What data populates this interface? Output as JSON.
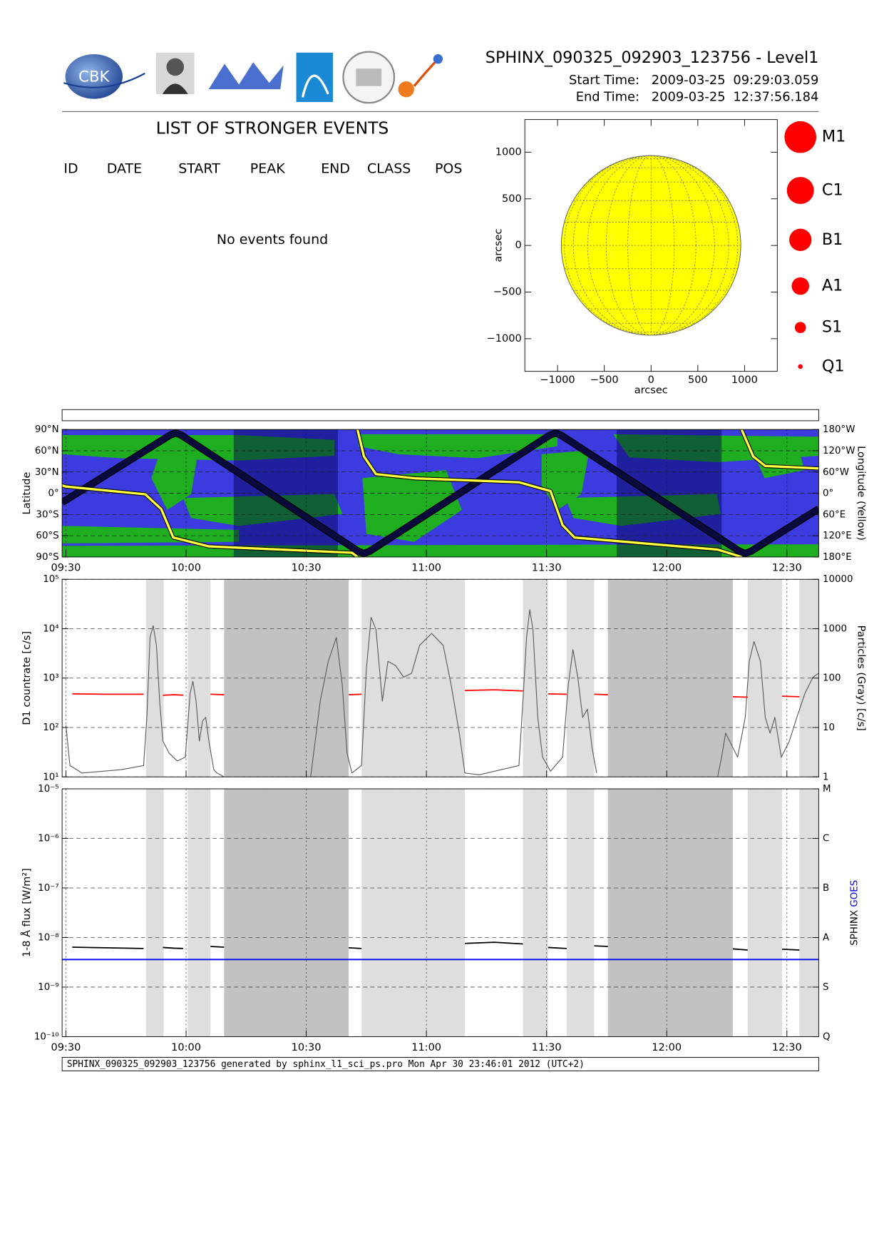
{
  "header": {
    "title": "SPHINX_090325_092903_123756 - Level1",
    "start_label": "Start Time:",
    "start_date": "2009-03-25",
    "start_time": "09:29:03.059",
    "end_label": "End Time:",
    "end_date": "2009-03-25",
    "end_time": "12:37:56.184",
    "logo_text": "CBK"
  },
  "events": {
    "title": "LIST OF STRONGER EVENTS",
    "columns": [
      "ID",
      "DATE",
      "START",
      "PEAK",
      "END",
      "CLASS",
      "POS"
    ],
    "message": "No events found"
  },
  "chart_data": [
    {
      "type": "disk",
      "xlabel": "arcsec",
      "ylabel": "arcsec",
      "xlim": [
        -1350,
        1350
      ],
      "ylim": [
        -1350,
        1350
      ],
      "xticks": [
        {
          "value": -1000,
          "label": "−1000"
        },
        {
          "value": -500,
          "label": "−500"
        },
        0,
        500,
        1000
      ],
      "yticks": [
        {
          "value": -1000,
          "label": "−1000"
        },
        {
          "value": -500,
          "label": "−500"
        },
        0,
        500,
        1000
      ],
      "disk_radius": 960,
      "disk_color": "#ffff00",
      "legend": {
        "labels": [
          "M1",
          "C1",
          "B1",
          "A1",
          "S1",
          "Q1"
        ],
        "color": "#ff0000"
      }
    },
    {
      "type": "map",
      "ylabel": "Latitude",
      "y2label": "Longitude (Yellow)",
      "xlim": [
        569.05,
        757.94
      ],
      "xticks": [
        {
          "value": 570,
          "label": "09:30"
        },
        {
          "value": 600,
          "label": "10:00"
        },
        {
          "value": 630,
          "label": "10:30"
        },
        {
          "value": 660,
          "label": "11:00"
        },
        {
          "value": 690,
          "label": "11:30"
        },
        {
          "value": 720,
          "label": "12:00"
        },
        {
          "value": 750,
          "label": "12:30"
        }
      ],
      "ylim": [
        -90,
        90
      ],
      "yticks": [
        {
          "value": 90,
          "label": "90°N"
        },
        {
          "value": 60,
          "label": "60°N"
        },
        {
          "value": 30,
          "label": "30°N"
        },
        {
          "value": 0,
          "label": "0°"
        },
        {
          "value": -30,
          "label": "30°S"
        },
        {
          "value": -60,
          "label": "60°S"
        },
        {
          "value": -90,
          "label": "90°S"
        }
      ],
      "y2lim": [
        180,
        -180
      ],
      "y2ticks": [
        {
          "value": -180,
          "label": "180°W"
        },
        {
          "value": -120,
          "label": "120°W"
        },
        {
          "value": -60,
          "label": "60°W"
        },
        {
          "value": 0,
          "label": "0°"
        },
        {
          "value": 60,
          "label": "60°E"
        },
        {
          "value": 120,
          "label": "120°E"
        },
        {
          "value": 180,
          "label": "180°E"
        }
      ],
      "grid": true,
      "shaded": [
        {
          "x": [
            611.9,
            637.9
          ],
          "color": "#000050"
        },
        {
          "x": [
            707.5,
            733.7
          ],
          "color": "#000050"
        }
      ],
      "series": [
        {
          "color": "#0a0a3c",
          "x": [
            569.05,
            596.0,
            597.4,
            598.8,
            643.0,
            644.4,
            645.8,
            690.8,
            692.2,
            693.6,
            738.2,
            739.6,
            741.0,
            757.94
          ],
          "values": [
            -13,
            82,
            85,
            82,
            -82,
            -85,
            -82,
            82,
            85,
            82,
            -82,
            -85,
            -82,
            -22
          ]
        },
        {
          "color": "#ffff40",
          "axis": "y2",
          "x": [
            569.05,
            570,
            589.8,
            593.8,
            596.8,
            605.7,
            641.4,
            642.8,
            null,
            642.8,
            644.4,
            647.4,
            657.3,
            683.1,
            691,
            694,
            697,
            732.7,
            738.7,
            null,
            738.7,
            741.6,
            744.6,
            757.94
          ],
          "values": [
            -22,
            -19,
            3,
            45,
            125,
            150,
            168,
            180,
            null,
            -180,
            -104,
            -54,
            -42,
            -31,
            -6,
            90,
            125,
            159,
            180,
            null,
            -180,
            -104,
            -77,
            -70
          ]
        }
      ]
    },
    {
      "type": "line",
      "ylabel": "D1 countrate [c/s]",
      "y2label": "Particles (Gray) [c/s]",
      "ylog": true,
      "xlim": [
        569.05,
        757.94
      ],
      "xticks": [
        570,
        600,
        630,
        660,
        690,
        720,
        750
      ],
      "xtick_labels": false,
      "ylim": [
        10,
        100000
      ],
      "yticks": [
        {
          "value": 10,
          "label": "10¹"
        },
        {
          "value": 100,
          "label": "10²"
        },
        {
          "value": 1000,
          "label": "10³"
        },
        {
          "value": 10000,
          "label": "10⁴"
        },
        {
          "value": 100000,
          "label": "10⁵"
        }
      ],
      "y2lim": [
        1,
        10000
      ],
      "y2ticks": [
        1,
        10,
        100,
        1000,
        10000
      ],
      "grid": true,
      "shaded": [
        {
          "x": [
            590.0,
            594.4
          ],
          "color": "#dedede"
        },
        {
          "x": [
            600.4,
            606.1
          ],
          "color": "#dedede"
        },
        {
          "x": [
            609.5,
            640.6
          ],
          "color": "#c2c2c2"
        },
        {
          "x": [
            643.8,
            669.6
          ],
          "color": "#dedede"
        },
        {
          "x": [
            684.1,
            690.4
          ],
          "color": "#dedede"
        },
        {
          "x": [
            695.0,
            701.9
          ],
          "color": "#dedede"
        },
        {
          "x": [
            705.3,
            736.5
          ],
          "color": "#c2c2c2"
        },
        {
          "x": [
            740.2,
            748.8
          ],
          "color": "#dedede"
        },
        {
          "x": [
            753.1,
            757.94
          ],
          "color": "#dedede"
        }
      ],
      "series": [
        {
          "color": "#5a5a5a",
          "axis": "y2",
          "x": [
            570.0,
            571.0,
            574.0,
            583.9,
            589.4,
            590.2,
            591.0,
            591.8,
            592.6,
            593.4,
            594.2,
            595.8,
            597.8,
            599.8,
            601.0,
            601.7,
            602.5,
            603.3,
            604.1,
            604.9,
            605.7,
            606.9,
            607.7,
            609.5,
            null,
            631.1,
            633.5,
            635.5,
            637.5,
            639.0,
            640.2,
            641.4,
            643.8,
            645.0,
            646.2,
            647.4,
            649.0,
            650.4,
            652.3,
            654.3,
            656.3,
            658.3,
            661.3,
            664.2,
            666.2,
            668.2,
            669.6,
            673.2,
            683.1,
            684.1,
            685.0,
            685.8,
            686.6,
            687.8,
            689.0,
            691.0,
            694.0,
            695.4,
            696.6,
            697.8,
            699.0,
            700.2,
            701.4,
            702.5,
            null,
            732.7,
            733.7,
            734.7,
            737.7,
            739.6,
            740.6,
            741.8,
            743.4,
            744.6,
            745.8,
            747.0,
            748.6,
            750.6,
            752.5,
            754.5,
            756.5,
            757.9
          ],
          "values": [
            11,
            1.7,
            1.2,
            1.4,
            1.7,
            16,
            665,
            1150,
            460,
            34,
            5.3,
            3.0,
            2.1,
            2.5,
            49,
            86,
            34,
            5.3,
            13.5,
            16,
            5.3,
            1.4,
            1.2,
            1,
            null,
            1,
            34,
            218,
            665,
            71,
            3.0,
            1.2,
            1.7,
            150,
            1690,
            960,
            34,
            218,
            180,
            104,
            125,
            460,
            800,
            460,
            71,
            7.7,
            1.2,
            1.1,
            1.7,
            34,
            665,
            2450,
            960,
            16,
            2.5,
            1.3,
            2.5,
            71,
            380,
            104,
            16,
            23.5,
            3.7,
            1.2,
            null,
            1,
            2.5,
            7.7,
            2.5,
            16,
            218,
            550,
            218,
            16,
            7.7,
            16,
            2.5,
            5.3,
            16,
            49,
            104,
            125
          ]
        },
        {
          "color": "#ff0000",
          "x": [
            571.6,
            580,
            589.4,
            null,
            594.2,
            597,
            599.3,
            null,
            606.1,
            609.5,
            null,
            640.6,
            643.8,
            null,
            669.6,
            677,
            684.1,
            null,
            690.4,
            695.0,
            null,
            701.9,
            705.3,
            null,
            736.5,
            740.2,
            null,
            748.8,
            753.1
          ],
          "values": [
            480,
            470,
            470,
            null,
            450,
            460,
            450,
            null,
            470,
            460,
            null,
            460,
            470,
            null,
            560,
            580,
            550,
            null,
            480,
            470,
            null,
            470,
            460,
            null,
            420,
            410,
            null,
            430,
            420
          ]
        }
      ]
    },
    {
      "type": "line",
      "ylabel": "1-8 Å flux [W/m²]",
      "ylog": true,
      "xlim": [
        569.05,
        757.94
      ],
      "xticks": [
        {
          "value": 570,
          "label": "09:30"
        },
        {
          "value": 600,
          "label": "10:00"
        },
        {
          "value": 630,
          "label": "10:30"
        },
        {
          "value": 660,
          "label": "11:00"
        },
        {
          "value": 690,
          "label": "11:30"
        },
        {
          "value": 720,
          "label": "12:00"
        },
        {
          "value": 750,
          "label": "12:30"
        }
      ],
      "ylim": [
        1e-10,
        1e-05
      ],
      "yticks": [
        {
          "value": 1e-10,
          "label": "10⁻¹⁰"
        },
        {
          "value": 1e-09,
          "label": "10⁻⁹"
        },
        {
          "value": 1e-08,
          "label": "10⁻⁸"
        },
        {
          "value": 1e-07,
          "label": "10⁻⁷"
        },
        {
          "value": 1e-06,
          "label": "10⁻⁶"
        },
        {
          "value": 1e-05,
          "label": "10⁻⁵"
        }
      ],
      "y2lim": [
        1e-10,
        1e-05
      ],
      "y2ticks": [
        {
          "value": 1e-10,
          "label": "Q"
        },
        {
          "value": 1e-09,
          "label": "S"
        },
        {
          "value": 1e-08,
          "label": "A"
        },
        {
          "value": 1e-07,
          "label": "B"
        },
        {
          "value": 1e-06,
          "label": "C"
        },
        {
          "value": 1e-05,
          "label": "M"
        }
      ],
      "grid": true,
      "legend": "right",
      "shaded": [
        {
          "x": [
            590.0,
            594.4
          ],
          "color": "#dedede"
        },
        {
          "x": [
            600.4,
            606.1
          ],
          "color": "#dedede"
        },
        {
          "x": [
            609.5,
            640.6
          ],
          "color": "#c2c2c2"
        },
        {
          "x": [
            643.8,
            669.6
          ],
          "color": "#dedede"
        },
        {
          "x": [
            684.1,
            690.4
          ],
          "color": "#dedede"
        },
        {
          "x": [
            695.0,
            701.9
          ],
          "color": "#dedede"
        },
        {
          "x": [
            705.3,
            736.5
          ],
          "color": "#c2c2c2"
        },
        {
          "x": [
            740.2,
            748.8
          ],
          "color": "#dedede"
        },
        {
          "x": [
            753.1,
            757.94
          ],
          "color": "#dedede"
        }
      ],
      "series": [
        {
          "name": "SPHINX",
          "color": "#000000",
          "x": [
            571.6,
            580,
            589.4,
            null,
            594.2,
            597,
            599.3,
            null,
            606.1,
            609.5,
            null,
            640.6,
            643.8,
            null,
            669.6,
            677,
            684.1,
            null,
            690.4,
            695.0,
            null,
            701.9,
            705.3,
            null,
            736.5,
            740.2,
            null,
            748.8,
            753.1
          ],
          "values": [
            6.4e-09,
            6.2e-09,
            6e-09,
            null,
            6.3e-09,
            6.1e-09,
            6e-09,
            null,
            6.6e-09,
            6.4e-09,
            null,
            6.2e-09,
            6e-09,
            null,
            7.6e-09,
            8e-09,
            7.4e-09,
            null,
            6.3e-09,
            6e-09,
            null,
            6.8e-09,
            6.6e-09,
            null,
            5.9e-09,
            5.6e-09,
            null,
            5.8e-09,
            5.6e-09
          ]
        },
        {
          "name": "GOES",
          "color": "#0000ff",
          "x": [
            569.05,
            757.94
          ],
          "values": [
            3.6e-09,
            3.6e-09
          ]
        }
      ]
    }
  ],
  "footer": "SPHINX_090325_092903_123756 generated by sphinx_l1_sci_ps.pro Mon Apr 30 23:46:01 2012 (UTC+2)"
}
